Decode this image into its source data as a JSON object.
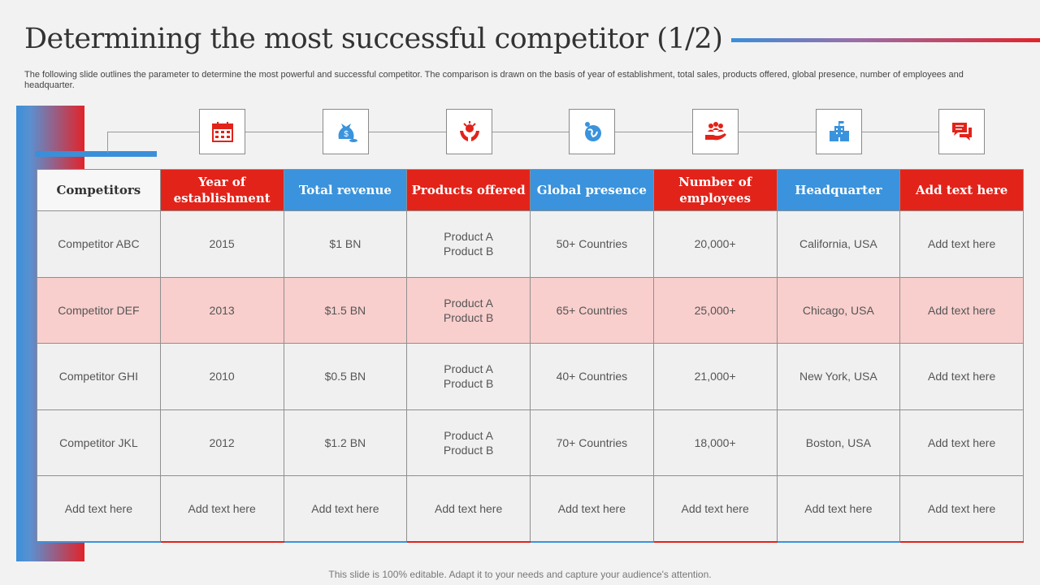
{
  "header": {
    "title": "Determining the most successful competitor (1/2)",
    "subtitle": "The following slide outlines the parameter to determine the most powerful and successful competitor. The comparison is drawn on the basis of year of establishment, total sales, products offered, global presence, number of employees and headquarter."
  },
  "colors": {
    "red": "#e2231a",
    "blue": "#3a93dc",
    "highlight": "#f8cfcd"
  },
  "icons": [
    "calendar-icon",
    "money-bag-icon",
    "hands-product-icon",
    "globe-person-icon",
    "team-hand-icon",
    "building-icon",
    "chat-icon"
  ],
  "table": {
    "headers": [
      "Competitors",
      "Year of establishment",
      "Total revenue",
      "Products offered",
      "Global presence",
      "Number of employees",
      "Headquarter",
      "Add text here"
    ],
    "rows": [
      [
        "Competitor ABC",
        "2015",
        "$1 BN",
        "Product A\nProduct B",
        "50+ Countries",
        "20,000+",
        "California, USA",
        "Add text here"
      ],
      [
        "Competitor DEF",
        "2013",
        "$1.5 BN",
        "Product A\nProduct B",
        "65+ Countries",
        "25,000+",
        "Chicago, USA",
        "Add text here"
      ],
      [
        "Competitor GHI",
        "2010",
        "$0.5 BN",
        "Product A\nProduct B",
        "40+ Countries",
        "21,000+",
        "New York, USA",
        "Add text here"
      ],
      [
        "Competitor JKL",
        "2012",
        "$1.2 BN",
        "Product A\nProduct B",
        "70+ Countries",
        "18,000+",
        "Boston, USA",
        "Add text here"
      ],
      [
        "Add text here",
        "Add text here",
        "Add text here",
        "Add text here",
        "Add text here",
        "Add text here",
        "Add text here",
        "Add text here"
      ]
    ]
  },
  "footer": {
    "text": "This slide is 100% editable. Adapt it to your needs and capture your audience's attention."
  }
}
